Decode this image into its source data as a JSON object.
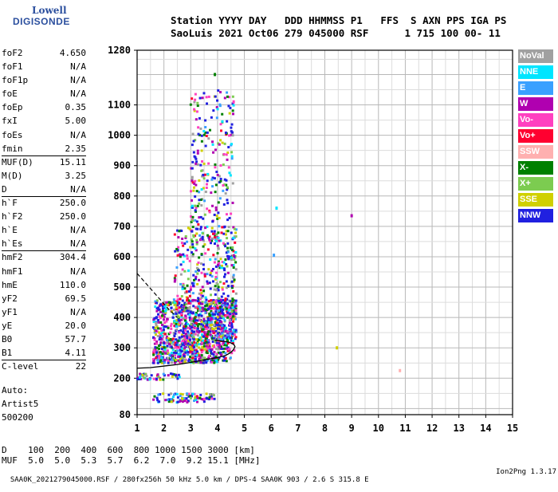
{
  "logo": {
    "line1": "Lowell",
    "line2": "DIGISONDE"
  },
  "header": {
    "line1": "Station YYYY DAY   DDD HHMMSS P1   FFS  S AXN PPS IGA PS",
    "line2": "SaoLuis 2021 Oct06 279 045000 RSF      1 715 100 00- 11"
  },
  "params": [
    {
      "label": "foF2",
      "value": "4.650"
    },
    {
      "label": "foF1",
      "value": "N/A"
    },
    {
      "label": "foF1p",
      "value": "N/A"
    },
    {
      "label": "foE",
      "value": "N/A"
    },
    {
      "label": "foEp",
      "value": "0.35"
    },
    {
      "label": "fxI",
      "value": "5.00"
    },
    {
      "label": "foEs",
      "value": "N/A"
    },
    {
      "label": "fmin",
      "value": "2.35"
    },
    {
      "label": "MUF(D)",
      "value": "15.11"
    },
    {
      "label": "M(D)",
      "value": "3.25"
    },
    {
      "label": "D",
      "value": "N/A"
    },
    {
      "label": "h`F",
      "value": "250.0"
    },
    {
      "label": "h`F2",
      "value": "250.0"
    },
    {
      "label": "h`E",
      "value": "N/A"
    },
    {
      "label": "h`Es",
      "value": "N/A"
    },
    {
      "label": "hmF2",
      "value": "304.4"
    },
    {
      "label": "hmF1",
      "value": "N/A"
    },
    {
      "label": "hmE",
      "value": "110.0"
    },
    {
      "label": "yF2",
      "value": "69.5"
    },
    {
      "label": "yF1",
      "value": "N/A"
    },
    {
      "label": "yE",
      "value": "20.0"
    },
    {
      "label": "B0",
      "value": "57.7"
    },
    {
      "label": "B1",
      "value": "4.11"
    },
    {
      "label": "C-level",
      "value": "22"
    }
  ],
  "auto": {
    "line1": "Auto:",
    "line2": "Artist5",
    "line3": "500200"
  },
  "legend": [
    {
      "label": "NoVal",
      "color": "#a0a0a0"
    },
    {
      "label": "NNE",
      "color": "#00e5ff"
    },
    {
      "label": "E",
      "color": "#3aa0ff"
    },
    {
      "label": "W",
      "color": "#b000b0"
    },
    {
      "label": "Vo-",
      "color": "#ff40c0"
    },
    {
      "label": "Vo+",
      "color": "#ff0030"
    },
    {
      "label": "SSW",
      "color": "#ffb0b0"
    },
    {
      "label": "X-",
      "color": "#008000"
    },
    {
      "label": "X+",
      "color": "#7ccc50"
    },
    {
      "label": "SSE",
      "color": "#d0d000"
    },
    {
      "label": "NNW",
      "color": "#2020e0"
    }
  ],
  "muf_table": {
    "line1": "D    100  200  400  600  800 1000 1500 3000 [km]",
    "line2": "MUF  5.0  5.0  5.3  5.7  6.2  7.0  9.2 15.1 [MHz]"
  },
  "footer": {
    "left": "SAA0K_2021279045000.RSF / 280fx256h 50 kHz 5.0 km / DPS-4 SAA0K 903 / 2.6 S 315.8 E",
    "right": "Ion2Png 1.3.17"
  },
  "chart_data": {
    "type": "scatter",
    "title": "",
    "xlabel": "",
    "ylabel": "",
    "xlim": [
      1,
      15
    ],
    "ylim": [
      80,
      1280
    ],
    "grid": true,
    "x_ticks": [
      1,
      2,
      3,
      4,
      5,
      6,
      7,
      8,
      9,
      10,
      11,
      12,
      13,
      14,
      15
    ],
    "y_ticks": [
      80,
      200,
      300,
      400,
      500,
      600,
      700,
      800,
      900,
      1000,
      1100,
      1280
    ],
    "profile_curve": [
      [
        1.0,
        233
      ],
      [
        1.5,
        235
      ],
      [
        2.0,
        240
      ],
      [
        2.5,
        245
      ],
      [
        3.0,
        252
      ],
      [
        3.5,
        260
      ],
      [
        4.0,
        268
      ],
      [
        4.3,
        275
      ],
      [
        4.5,
        285
      ],
      [
        4.6,
        295
      ],
      [
        4.65,
        304
      ],
      [
        4.6,
        312
      ],
      [
        4.45,
        318
      ],
      [
        4.2,
        322
      ],
      [
        3.9,
        325
      ]
    ],
    "dashed_trace": [
      [
        1.0,
        545
      ],
      [
        1.3,
        515
      ],
      [
        1.6,
        485
      ],
      [
        1.9,
        455
      ],
      [
        2.2,
        425
      ],
      [
        2.5,
        400
      ]
    ],
    "isolated_points": [
      {
        "x": 8.45,
        "y": 300,
        "cls": "SSE"
      },
      {
        "x": 9.0,
        "y": 735,
        "cls": "W"
      },
      {
        "x": 10.8,
        "y": 225,
        "cls": "SSW"
      },
      {
        "x": 6.2,
        "y": 760,
        "cls": "NNE"
      },
      {
        "x": 6.1,
        "y": 605,
        "cls": "E"
      },
      {
        "x": 3.9,
        "y": 1200,
        "cls": "X-"
      },
      {
        "x": 4.6,
        "y": 1110,
        "cls": "Vo-"
      }
    ],
    "echo_clusters": [
      {
        "x0": 1.6,
        "x1": 4.7,
        "y0": 250,
        "y1": 460,
        "n": 1100
      },
      {
        "x0": 2.4,
        "x1": 4.7,
        "y0": 300,
        "y1": 700,
        "n": 500
      },
      {
        "x0": 3.0,
        "x1": 4.6,
        "y0": 650,
        "y1": 1150,
        "n": 260
      },
      {
        "x0": 1.6,
        "x1": 3.9,
        "y0": 120,
        "y1": 150,
        "n": 90
      },
      {
        "x0": 1.0,
        "x1": 2.6,
        "y0": 195,
        "y1": 215,
        "n": 50
      }
    ]
  }
}
